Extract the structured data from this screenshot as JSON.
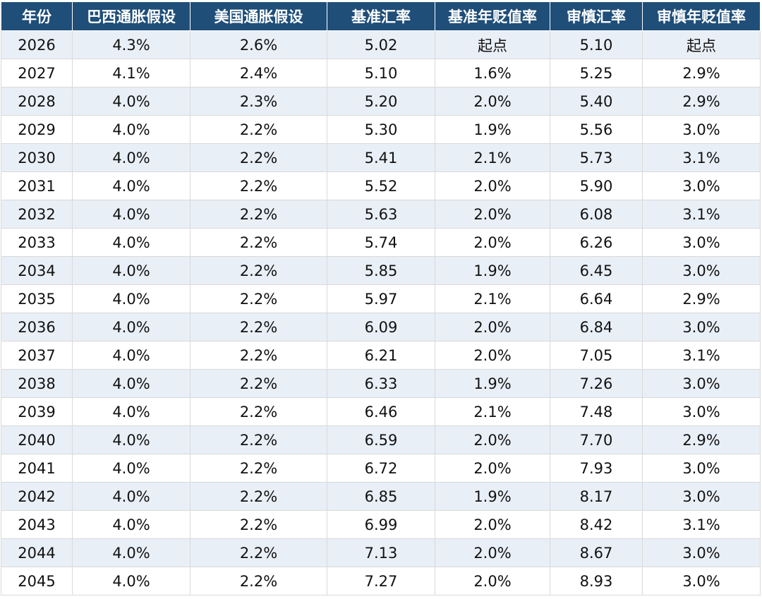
{
  "table": {
    "headers": [
      "年份",
      "巴西通胀假设",
      "美国通胀假设",
      "基准汇率",
      "基准年贬值率",
      "审慎汇率",
      "审慎年贬值率"
    ],
    "rows": [
      [
        "2026",
        "4.3%",
        "2.6%",
        "5.02",
        "起点",
        "5.10",
        "起点"
      ],
      [
        "2027",
        "4.1%",
        "2.4%",
        "5.10",
        "1.6%",
        "5.25",
        "2.9%"
      ],
      [
        "2028",
        "4.0%",
        "2.3%",
        "5.20",
        "2.0%",
        "5.40",
        "2.9%"
      ],
      [
        "2029",
        "4.0%",
        "2.2%",
        "5.30",
        "1.9%",
        "5.56",
        "3.0%"
      ],
      [
        "2030",
        "4.0%",
        "2.2%",
        "5.41",
        "2.1%",
        "5.73",
        "3.1%"
      ],
      [
        "2031",
        "4.0%",
        "2.2%",
        "5.52",
        "2.0%",
        "5.90",
        "3.0%"
      ],
      [
        "2032",
        "4.0%",
        "2.2%",
        "5.63",
        "2.0%",
        "6.08",
        "3.1%"
      ],
      [
        "2033",
        "4.0%",
        "2.2%",
        "5.74",
        "2.0%",
        "6.26",
        "3.0%"
      ],
      [
        "2034",
        "4.0%",
        "2.2%",
        "5.85",
        "1.9%",
        "6.45",
        "3.0%"
      ],
      [
        "2035",
        "4.0%",
        "2.2%",
        "5.97",
        "2.1%",
        "6.64",
        "2.9%"
      ],
      [
        "2036",
        "4.0%",
        "2.2%",
        "6.09",
        "2.0%",
        "6.84",
        "3.0%"
      ],
      [
        "2037",
        "4.0%",
        "2.2%",
        "6.21",
        "2.0%",
        "7.05",
        "3.1%"
      ],
      [
        "2038",
        "4.0%",
        "2.2%",
        "6.33",
        "1.9%",
        "7.26",
        "3.0%"
      ],
      [
        "2039",
        "4.0%",
        "2.2%",
        "6.46",
        "2.1%",
        "7.48",
        "3.0%"
      ],
      [
        "2040",
        "4.0%",
        "2.2%",
        "6.59",
        "2.0%",
        "7.70",
        "2.9%"
      ],
      [
        "2041",
        "4.0%",
        "2.2%",
        "6.72",
        "2.0%",
        "7.93",
        "3.0%"
      ],
      [
        "2042",
        "4.0%",
        "2.2%",
        "6.85",
        "1.9%",
        "8.17",
        "3.0%"
      ],
      [
        "2043",
        "4.0%",
        "2.2%",
        "6.99",
        "2.0%",
        "8.42",
        "3.1%"
      ],
      [
        "2044",
        "4.0%",
        "2.2%",
        "7.13",
        "2.0%",
        "8.67",
        "3.0%"
      ],
      [
        "2045",
        "4.0%",
        "2.2%",
        "7.27",
        "2.0%",
        "8.93",
        "3.0%"
      ]
    ]
  },
  "colors": {
    "header_bg": "#1f4e79",
    "header_text": "#ffffff",
    "row_odd_bg": "#e9eff7",
    "row_even_bg": "#ffffff",
    "cell_text": "#111111"
  }
}
